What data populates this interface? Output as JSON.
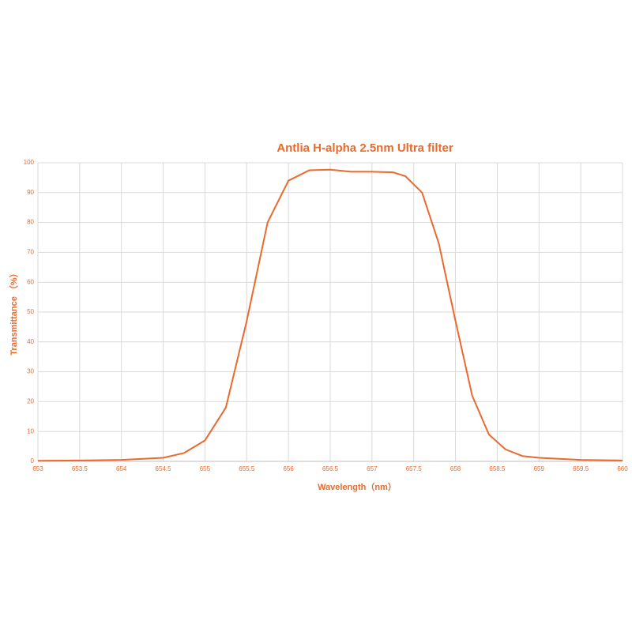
{
  "chart_data": {
    "type": "line",
    "title": "Antlia H-alpha 2.5nm Ultra filter",
    "x_label": "Wavelength（nm）",
    "y_label": "Transmittance （%）",
    "x": [
      653,
      653.5,
      654,
      654.5,
      654.75,
      655,
      655.25,
      655.5,
      655.75,
      656,
      656.25,
      656.5,
      656.75,
      657,
      657.25,
      657.4,
      657.6,
      657.8,
      658,
      658.2,
      658.4,
      658.6,
      658.8,
      659,
      659.5,
      660
    ],
    "series": [
      {
        "color": "#ea6a2e",
        "values": [
          0.2,
          0.3,
          0.5,
          1.2,
          2.8,
          7,
          18,
          47,
          80,
          94,
          97.5,
          97.7,
          97,
          97,
          96.8,
          95.5,
          90,
          73,
          47,
          22,
          9,
          4,
          1.8,
          1.2,
          0.5,
          0.3
        ]
      }
    ],
    "xlim": [
      653,
      660
    ],
    "ylim": [
      0,
      100
    ],
    "xticks": [
      653,
      653.5,
      654,
      654.5,
      655,
      655.5,
      656,
      656.5,
      657,
      657.5,
      658,
      658.5,
      659,
      659.5,
      660
    ],
    "yticks": [
      0,
      10,
      20,
      30,
      40,
      50,
      60,
      70,
      80,
      90,
      100
    ],
    "grid": true
  }
}
